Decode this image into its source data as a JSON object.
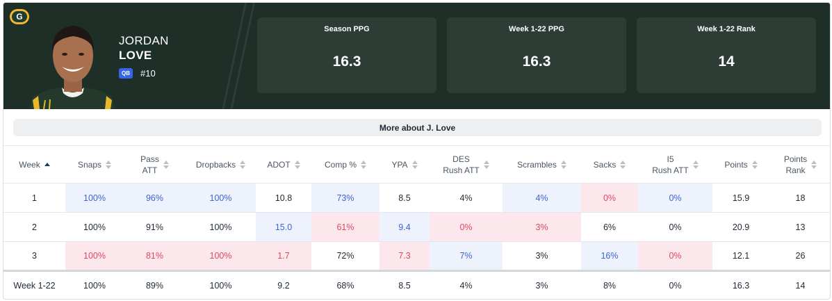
{
  "header": {
    "team_logo_letter": "G",
    "first_name": "JORDAN",
    "last_name": "LOVE",
    "position": "QB",
    "jersey": "#10",
    "colors": {
      "header_bg": "#1e2f28",
      "stat_box_bg": "#2d3d36",
      "badge": "#3565e8",
      "logo_yellow": "#f2b632",
      "logo_green": "#1f3d2e"
    }
  },
  "stats": [
    {
      "label": "Season PPG",
      "value": "16.3"
    },
    {
      "label": "Week 1-22 PPG",
      "value": "16.3"
    },
    {
      "label": "Week 1-22 Rank",
      "value": "14"
    }
  ],
  "more_button": "More about J. Love",
  "table": {
    "columns": [
      {
        "line1": "Week",
        "line2": ""
      },
      {
        "line1": "Snaps",
        "line2": ""
      },
      {
        "line1": "Pass",
        "line2": "ATT"
      },
      {
        "line1": "Dropbacks",
        "line2": ""
      },
      {
        "line1": "ADOT",
        "line2": ""
      },
      {
        "line1": "Comp %",
        "line2": ""
      },
      {
        "line1": "YPA",
        "line2": ""
      },
      {
        "line1": "DES",
        "line2": "Rush ATT"
      },
      {
        "line1": "Scrambles",
        "line2": ""
      },
      {
        "line1": "Sacks",
        "line2": ""
      },
      {
        "line1": "I5",
        "line2": "Rush ATT"
      },
      {
        "line1": "Points",
        "line2": ""
      },
      {
        "line1": "Points",
        "line2": "Rank"
      }
    ],
    "rows": [
      [
        "1",
        "100%",
        "96%",
        "100%",
        "10.8",
        "73%",
        "8.5",
        "4%",
        "4%",
        "0%",
        "0%",
        "15.9",
        "18"
      ],
      [
        "2",
        "100%",
        "91%",
        "100%",
        "15.0",
        "61%",
        "9.4",
        "0%",
        "3%",
        "6%",
        "0%",
        "20.9",
        "13"
      ],
      [
        "3",
        "100%",
        "81%",
        "100%",
        "1.7",
        "72%",
        "7.3",
        "7%",
        "3%",
        "16%",
        "0%",
        "12.1",
        "26"
      ]
    ],
    "total": [
      "Week 1-22",
      "100%",
      "89%",
      "100%",
      "9.2",
      "68%",
      "8.5",
      "4%",
      "3%",
      "8%",
      "0%",
      "16.3",
      "14"
    ],
    "cell_colors": {
      "good": "#eef2fd",
      "bad": "#fce8ec"
    }
  }
}
